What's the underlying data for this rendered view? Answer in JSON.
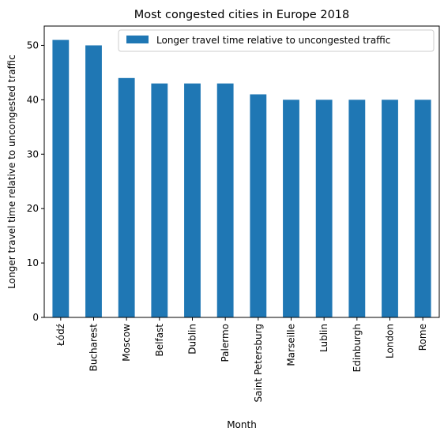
{
  "chart_data": {
    "type": "bar",
    "title": "Most congested cities in Europe 2018",
    "xlabel": "Month",
    "ylabel": "Longer travel time relative to uncongested traffic",
    "categories": [
      "Łódź",
      "Bucharest",
      "Moscow",
      "Belfast",
      "Dublin",
      "Palermo",
      "Saint Petersburg",
      "Marseille",
      "Lublin",
      "Edinburgh",
      "London",
      "Rome"
    ],
    "series": [
      {
        "name": "Longer travel time relative to uncongested traffic",
        "color": "#1f77b4",
        "values": [
          51,
          50,
          44,
          43,
          43,
          43,
          41,
          40,
          40,
          40,
          40,
          40
        ]
      }
    ],
    "ylim": [
      0,
      53.55
    ],
    "yticks": [
      0,
      10,
      20,
      30,
      40,
      50
    ],
    "legend_position": "top-right",
    "grid": false
  }
}
